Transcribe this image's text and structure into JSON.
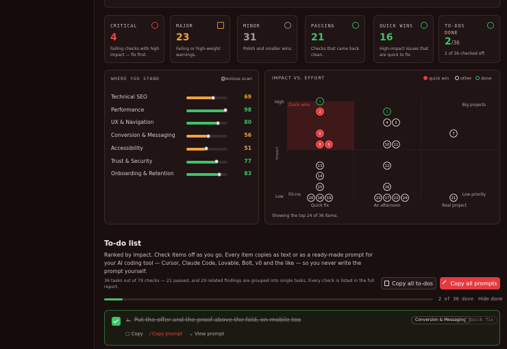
{
  "stats": [
    {
      "label": "CRITICAL",
      "value": 4,
      "desc": "Failing checks with high impact — fix first.",
      "tone": "#ef4444"
    },
    {
      "label": "MAJOR",
      "value": 23,
      "desc": "Failing or high-weight warnings.",
      "tone": "#f2a33a"
    },
    {
      "label": "MINOR",
      "value": 31,
      "desc": "Polish and smaller wins.",
      "tone": "#a39a9a"
    },
    {
      "label": "PASSING",
      "value": 21,
      "desc": "Checks that came back clean.",
      "tone": "#3cc46a"
    },
    {
      "label": "QUICK WINS",
      "value": 16,
      "desc": "High-impact issues that are quick to fix.",
      "tone": "#3cc46a"
    },
    {
      "label": "TO-DOS DONE",
      "value": 2,
      "suffix": "/36",
      "desc": "2 of 36 checked off.",
      "tone": "#3cc46a"
    }
  ],
  "standing": {
    "title": "WHERE YOU STAND",
    "legend": "previous scan",
    "max": 100,
    "rows": [
      {
        "name": "Technical SEO",
        "value": 69,
        "color": "#f2a33a"
      },
      {
        "name": "Performance",
        "value": 98,
        "color": "#3cc46a"
      },
      {
        "name": "UX & Navigation",
        "value": 80,
        "color": "#3cc46a"
      },
      {
        "name": "Conversion & Messaging",
        "value": 56,
        "color": "#f2a33a"
      },
      {
        "name": "Accessibility",
        "value": 51,
        "color": "#f2a33a"
      },
      {
        "name": "Trust & Security",
        "value": 77,
        "color": "#3cc46a"
      },
      {
        "name": "Onboarding & Retention",
        "value": 83,
        "color": "#3cc46a"
      }
    ]
  },
  "matrix": {
    "title": "IMPACT VS. EFFORT",
    "legend": [
      {
        "name": "quick win",
        "kind": "quick"
      },
      {
        "name": "other",
        "kind": "other"
      },
      {
        "name": "done",
        "kind": "done"
      }
    ],
    "y_axis": {
      "title": "Impact",
      "high": "High",
      "low": "Low"
    },
    "x_axis": [
      "Quick fix",
      "An afternoon",
      "Real project"
    ],
    "quadrants": {
      "top_left": "Quick wins",
      "top_right": "Big projects",
      "bottom_left": "Fill-ins",
      "bottom_right": "Low priority"
    },
    "points": [
      {
        "label": 1,
        "kind": "done"
      },
      {
        "label": 2,
        "kind": "quick"
      },
      {
        "label": 3,
        "kind": "done"
      },
      {
        "label": 4,
        "kind": "other"
      },
      {
        "label": 5,
        "kind": "other"
      },
      {
        "label": 6,
        "kind": "quick"
      },
      {
        "label": 7,
        "kind": "other"
      },
      {
        "label": 8,
        "kind": "quick"
      },
      {
        "label": 9,
        "kind": "quick"
      },
      {
        "label": 10,
        "kind": "other"
      },
      {
        "label": 11,
        "kind": "other"
      },
      {
        "label": 12,
        "kind": "other"
      },
      {
        "label": 13,
        "kind": "other"
      },
      {
        "label": 14,
        "kind": "other"
      },
      {
        "label": 15,
        "kind": "other"
      },
      {
        "label": 16,
        "kind": "other"
      },
      {
        "label": 17,
        "kind": "other"
      },
      {
        "label": 18,
        "kind": "other"
      },
      {
        "label": 19,
        "kind": "other"
      },
      {
        "label": 20,
        "kind": "other"
      },
      {
        "label": 21,
        "kind": "other"
      },
      {
        "label": 22,
        "kind": "other"
      },
      {
        "label": 23,
        "kind": "other"
      },
      {
        "label": 24,
        "kind": "other"
      }
    ],
    "footer": "Showing the top 24 of 36 items."
  },
  "todo": {
    "title": "To-do list",
    "intro": "Ranked by impact. Check items off as you go. Every item copies as text or as a ready-made prompt for your AI coding tool — Cursor, Claude Code, Lovable, Bolt, v0 and the like — so you never write the prompt yourself.",
    "note": "36 tasks out of 79 checks — 21 passed, and 29 related findings are grouped into single tasks. Every check is listed in the full report.",
    "buttons": {
      "copy_todos": "Copy all to-dos",
      "copy_prompts": "Copy all prompts"
    },
    "progress": {
      "value": 2,
      "max": 36,
      "label": "2 of 36 done"
    },
    "hide_done": "Hide done",
    "items": [
      {
        "number": "1.",
        "title": "Put the offer and the proof above the fold, on mobile too",
        "tags": [
          "Conversion & Messaging",
          "Quick fix"
        ],
        "actions": {
          "copy": "Copy",
          "copy_prompt": "Copy prompt",
          "view_prompt": "View prompt"
        }
      }
    ]
  }
}
